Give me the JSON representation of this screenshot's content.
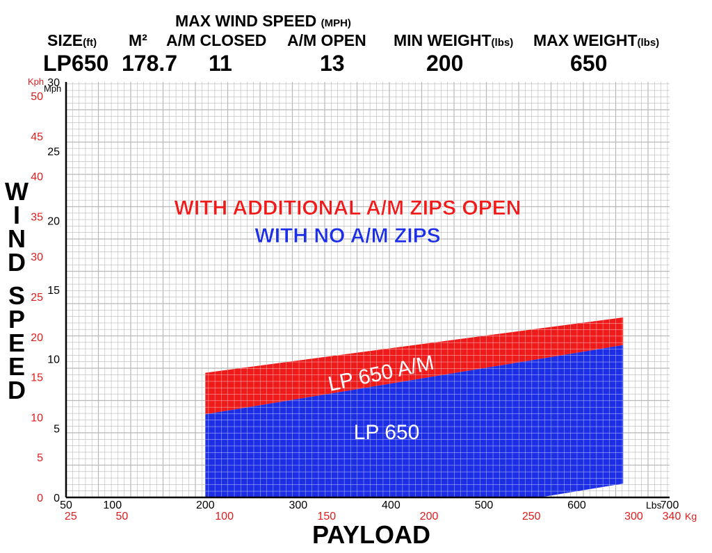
{
  "header": {
    "max_wind_title": "MAX WIND SPEED",
    "max_wind_unit": "(MPH)",
    "cols": [
      {
        "label": "SIZE",
        "unit": "(ft)",
        "value": "LP650"
      },
      {
        "label": "M²",
        "unit": "",
        "value": "178.7"
      },
      {
        "label": "A/M CLOSED",
        "unit": "",
        "value": "11"
      },
      {
        "label": "A/M OPEN",
        "unit": "",
        "value": "13"
      },
      {
        "label": "MIN WEIGHT",
        "unit": "(lbs)",
        "value": "200"
      },
      {
        "label": "MAX WEIGHT",
        "unit": "(lbs)",
        "value": "650"
      }
    ]
  },
  "chart_data": {
    "type": "area",
    "xlabel": "PAYLOAD",
    "ylabel": "WIND SPEED",
    "x_unit_primary": "Lbs",
    "x_unit_secondary": "Kg",
    "y_unit_primary": "Mph",
    "y_unit_secondary": "Kph",
    "xlim": [
      50,
      700
    ],
    "ylim": [
      0,
      30
    ],
    "x_ticks_lbs": [
      50,
      100,
      200,
      300,
      400,
      500,
      600,
      700
    ],
    "x_ticks_kg": [
      25,
      50,
      100,
      150,
      200,
      250,
      300,
      340
    ],
    "y_ticks_mph": [
      30,
      25,
      20,
      15,
      10,
      5,
      0
    ],
    "y_ticks_kph": [
      50,
      45,
      40,
      35,
      30,
      25,
      20,
      15,
      10,
      5,
      0
    ],
    "grid": true,
    "legend": [
      {
        "text": "WITH ADDITIONAL A/M ZIPS OPEN",
        "color": "#ef1b1b"
      },
      {
        "text": "WITH NO A/M ZIPS",
        "color": "#1c2fe6"
      }
    ],
    "series": [
      {
        "name": "LP 650 A/M",
        "color": "#ef1b1b",
        "points": [
          {
            "x": 200,
            "y": 9.0
          },
          {
            "x": 650,
            "y": 13.0
          }
        ]
      },
      {
        "name": "LP 650",
        "color": "#1c2fe6",
        "points": [
          {
            "x": 200,
            "y": 6.0
          },
          {
            "x": 650,
            "y": 11.0
          }
        ]
      }
    ],
    "bottom_edge_points": [
      {
        "x": 200,
        "y": 0
      },
      {
        "x": 560,
        "y": 0
      },
      {
        "x": 650,
        "y": 1.0
      }
    ]
  },
  "colors": {
    "grid": "#b8b8b8",
    "red_label": "#e01b1b",
    "axis": "#000000"
  }
}
